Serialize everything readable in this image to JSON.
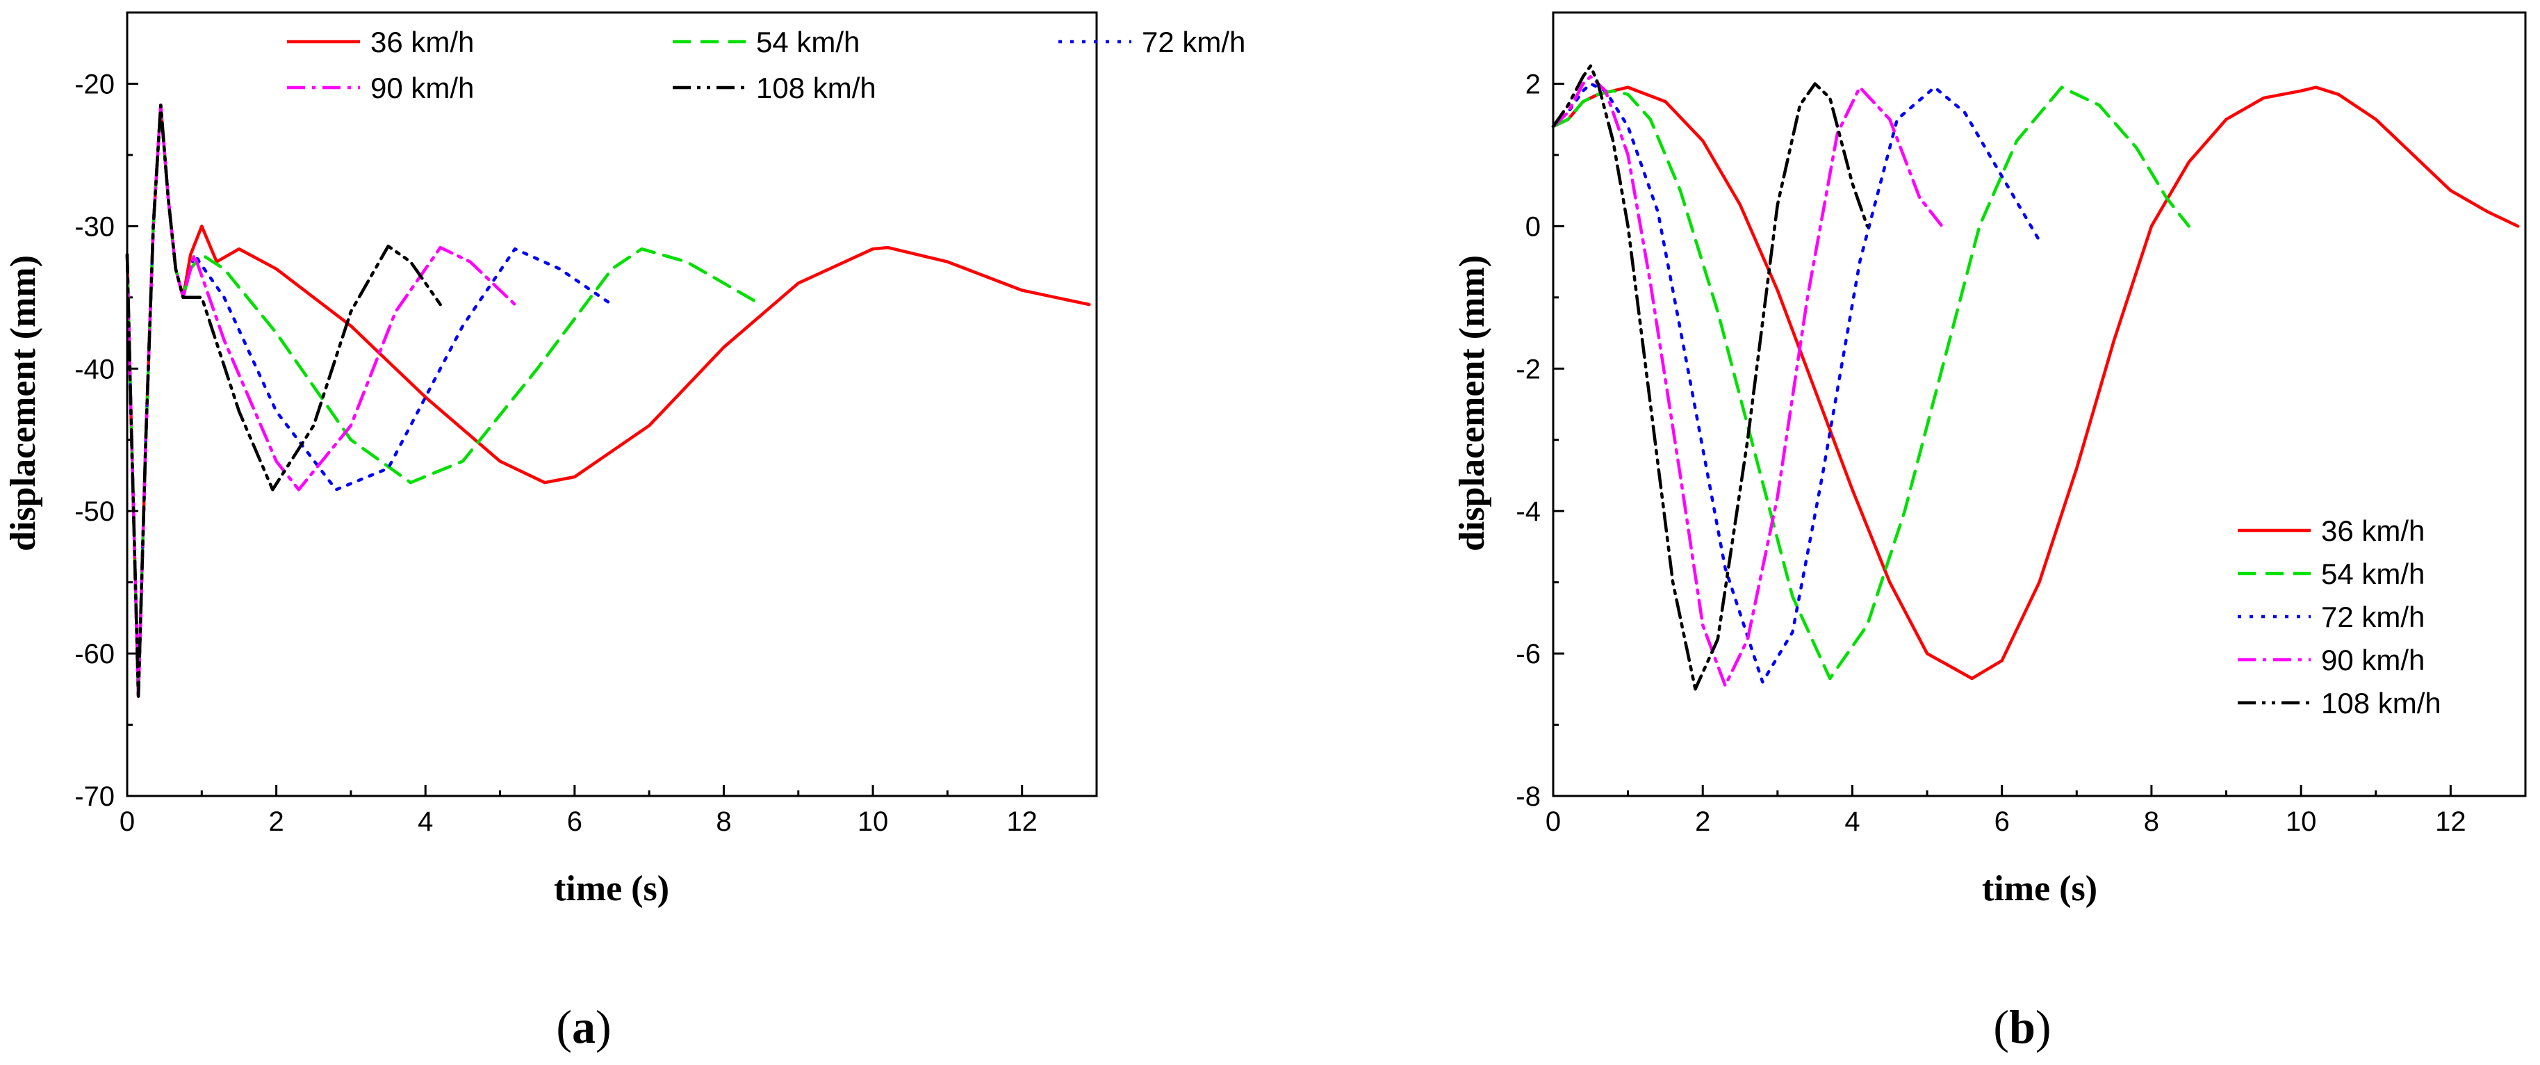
{
  "chart_data": [
    {
      "type": "line",
      "caption": "(a)",
      "caption_letter": "a",
      "xlabel": "time (s)",
      "ylabel": "displacement (mm)",
      "xlim": [
        0,
        13
      ],
      "ylim": [
        -70,
        -15
      ],
      "xticks": [
        0,
        2,
        4,
        6,
        8,
        10,
        12
      ],
      "yticks": [
        -70,
        -60,
        -50,
        -40,
        -30,
        -20
      ],
      "xtick_labels": [
        "0",
        "2",
        "4",
        "6",
        "8",
        "10",
        "12"
      ],
      "ytick_labels": [
        "-70",
        "-60",
        "-50",
        "-40",
        "-30",
        "-20"
      ],
      "legend_position": "top",
      "series": [
        {
          "name": "36 km/h",
          "color": "#ff0000",
          "dash": "solid",
          "x": [
            0,
            0.05,
            0.15,
            0.25,
            0.35,
            0.45,
            0.55,
            0.65,
            0.75,
            0.85,
            1.0,
            1.2,
            1.5,
            2,
            3,
            4,
            5,
            5.6,
            6,
            7,
            8,
            9,
            10,
            10.2,
            11,
            12,
            12.9
          ],
          "y": [
            -32,
            -43,
            -63,
            -45,
            -30,
            -21.5,
            -28,
            -33,
            -35,
            -32,
            -30,
            -32.5,
            -31.6,
            -33,
            -37,
            -42,
            -46.5,
            -48,
            -47.6,
            -44,
            -38.5,
            -34,
            -31.6,
            -31.5,
            -32.5,
            -34.5,
            -35.5
          ]
        },
        {
          "name": "54 km/h",
          "color": "#00e000",
          "dash": "dashed",
          "x": [
            0,
            0.05,
            0.15,
            0.25,
            0.35,
            0.45,
            0.55,
            0.65,
            0.75,
            0.85,
            1.0,
            1.3,
            2,
            3,
            3.8,
            4.5,
            5.5,
            6.5,
            6.9,
            7.5,
            8,
            8.5
          ],
          "y": [
            -32,
            -43,
            -63,
            -45,
            -30,
            -21.5,
            -28,
            -33,
            -35,
            -33,
            -32,
            -33,
            -37.5,
            -45,
            -48,
            -46.5,
            -40,
            -33,
            -31.6,
            -32.5,
            -34,
            -35.5
          ]
        },
        {
          "name": "72 km/h",
          "color": "#0000ff",
          "dash": "dotted",
          "x": [
            0,
            0.05,
            0.15,
            0.25,
            0.35,
            0.45,
            0.55,
            0.65,
            0.75,
            0.9,
            1.3,
            2,
            2.8,
            3.5,
            4.5,
            5.2,
            5.8,
            6.5
          ],
          "y": [
            -32,
            -43,
            -63,
            -45,
            -30,
            -21.5,
            -28,
            -33,
            -35,
            -32,
            -35,
            -43,
            -48.5,
            -47,
            -37,
            -31.6,
            -33,
            -35.5
          ]
        },
        {
          "name": "90 km/h",
          "color": "#ff00ff",
          "dash": "dashdot",
          "x": [
            0,
            0.05,
            0.15,
            0.25,
            0.35,
            0.45,
            0.55,
            0.65,
            0.75,
            0.9,
            1.3,
            2,
            2.3,
            3,
            3.6,
            4.2,
            4.6,
            5.2
          ],
          "y": [
            -32,
            -43,
            -63,
            -45,
            -30,
            -21.5,
            -28,
            -33,
            -35,
            -32,
            -38,
            -46.5,
            -48.5,
            -44,
            -36,
            -31.5,
            -32.5,
            -35.5
          ]
        },
        {
          "name": "108 km/h",
          "color": "#000000",
          "dash": "dashdotdot",
          "x": [
            0,
            0.05,
            0.15,
            0.25,
            0.35,
            0.45,
            0.55,
            0.65,
            0.75,
            1.0,
            1.5,
            1.95,
            2.5,
            3.0,
            3.5,
            3.8,
            4.2
          ],
          "y": [
            -32,
            -43,
            -63,
            -45,
            -30,
            -21.5,
            -28,
            -33,
            -35,
            -35,
            -43,
            -48.5,
            -44,
            -36,
            -31.4,
            -32.5,
            -35.5
          ]
        }
      ]
    },
    {
      "type": "line",
      "caption": "(b)",
      "caption_letter": "b",
      "xlabel": "time (s)",
      "ylabel": "displacement (mm)",
      "xlim": [
        0,
        13
      ],
      "ylim": [
        -8,
        3
      ],
      "xticks": [
        0,
        2,
        4,
        6,
        8,
        10,
        12
      ],
      "yticks": [
        -8,
        -6,
        -4,
        -2,
        0,
        2
      ],
      "xtick_labels": [
        "0",
        "2",
        "4",
        "6",
        "8",
        "10",
        "12"
      ],
      "ytick_labels": [
        "-8",
        "-6",
        "-4",
        "-2",
        "0",
        "2"
      ],
      "legend_position": "bottom-right",
      "series": [
        {
          "name": "36 km/h",
          "color": "#ff0000",
          "dash": "solid",
          "x": [
            0,
            0.2,
            0.4,
            0.6,
            0.8,
            1.0,
            1.5,
            2,
            2.5,
            3,
            3.5,
            4,
            4.5,
            5,
            5.6,
            6,
            6.5,
            7,
            7.5,
            8,
            8.5,
            9,
            9.5,
            10,
            10.2,
            10.5,
            11,
            11.5,
            12,
            12.5,
            12.9
          ],
          "y": [
            1.4,
            1.5,
            1.75,
            1.85,
            1.9,
            1.95,
            1.75,
            1.2,
            0.3,
            -0.9,
            -2.3,
            -3.7,
            -5.0,
            -6.0,
            -6.35,
            -6.1,
            -5.0,
            -3.4,
            -1.6,
            0.0,
            0.9,
            1.5,
            1.8,
            1.9,
            1.95,
            1.85,
            1.5,
            1.0,
            0.5,
            0.2,
            0.0
          ]
        },
        {
          "name": "54 km/h",
          "color": "#00e000",
          "dash": "dashed",
          "x": [
            0,
            0.2,
            0.4,
            0.6,
            0.8,
            1.0,
            1.3,
            1.7,
            2.2,
            2.7,
            3.2,
            3.7,
            4.2,
            4.7,
            5.2,
            5.7,
            6.2,
            6.8,
            7.3,
            7.8,
            8.2,
            8.5
          ],
          "y": [
            1.4,
            1.5,
            1.75,
            1.85,
            1.9,
            1.85,
            1.5,
            0.5,
            -1.2,
            -3.2,
            -5.2,
            -6.35,
            -5.6,
            -4.0,
            -2.0,
            0.0,
            1.2,
            1.95,
            1.7,
            1.1,
            0.4,
            0.0
          ]
        },
        {
          "name": "72 km/h",
          "color": "#0000ff",
          "dash": "dotted",
          "x": [
            0,
            0.2,
            0.4,
            0.5,
            0.7,
            1.0,
            1.4,
            1.8,
            2.3,
            2.8,
            3.2,
            3.6,
            4.1,
            4.6,
            5.1,
            5.5,
            6.0,
            6.5
          ],
          "y": [
            1.4,
            1.6,
            1.9,
            2.0,
            1.9,
            1.4,
            0.2,
            -2.0,
            -4.8,
            -6.4,
            -5.7,
            -3.5,
            -0.5,
            1.5,
            1.95,
            1.6,
            0.7,
            -0.2
          ]
        },
        {
          "name": "90 km/h",
          "color": "#ff00ff",
          "dash": "dashdot",
          "x": [
            0,
            0.2,
            0.4,
            0.5,
            0.7,
            1.0,
            1.3,
            1.7,
            2.0,
            2.3,
            2.6,
            3.0,
            3.4,
            3.8,
            4.1,
            4.5,
            4.9,
            5.2
          ],
          "y": [
            1.4,
            1.6,
            2.0,
            2.1,
            1.9,
            1.0,
            -0.8,
            -3.5,
            -5.6,
            -6.45,
            -5.8,
            -3.8,
            -1.0,
            1.3,
            1.95,
            1.5,
            0.4,
            0.0
          ]
        },
        {
          "name": "108 km/h",
          "color": "#000000",
          "dash": "dashdotdot",
          "x": [
            0,
            0.2,
            0.4,
            0.5,
            0.6,
            0.8,
            1.0,
            1.3,
            1.6,
            1.9,
            2.2,
            2.6,
            3.0,
            3.3,
            3.5,
            3.7,
            4.0,
            4.2
          ],
          "y": [
            1.4,
            1.7,
            2.1,
            2.25,
            2.0,
            1.2,
            0.0,
            -2.5,
            -5.0,
            -6.5,
            -5.8,
            -3.0,
            0.3,
            1.7,
            2.0,
            1.8,
            0.6,
            0.0
          ]
        }
      ]
    }
  ]
}
